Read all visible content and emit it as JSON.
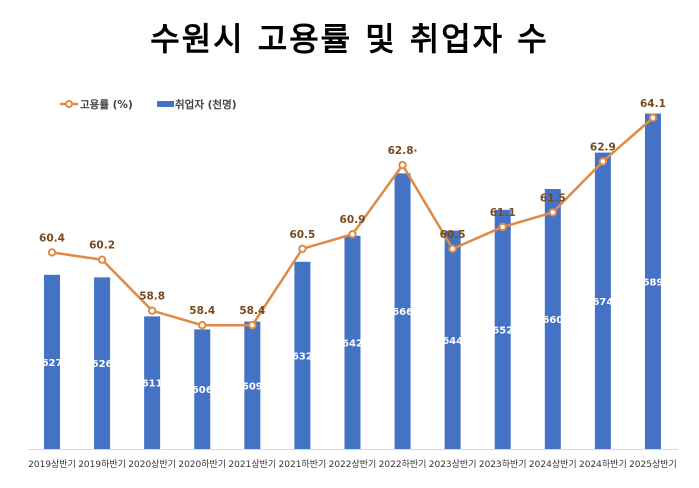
{
  "chart_data": {
    "type": "bar+line",
    "title": "수원시 고용률 및 취업자 수",
    "categories": [
      "2019상반기",
      "2019하반기",
      "2020상반기",
      "2020하반기",
      "2021상반기",
      "2021하반기",
      "2022상반기",
      "2022하반기",
      "2023상반기",
      "2023하반기",
      "2024상반기",
      "2024하반기",
      "2025상반기"
    ],
    "series": [
      {
        "name": "고용률 (%)",
        "type": "line",
        "color": "#E08A45",
        "values": [
          60.4,
          60.2,
          58.8,
          58.4,
          58.4,
          60.5,
          60.9,
          62.8,
          60.5,
          61.1,
          61.5,
          62.9,
          64.1
        ],
        "value_labels": [
          "60.4",
          "60.2",
          "58.8",
          "58.4",
          "58.4",
          "60.5",
          "60.9",
          "62.8·",
          "60.5",
          "61.1",
          "61.5",
          "62.9",
          "64.1"
        ],
        "ylim": [
          55,
          65
        ]
      },
      {
        "name": "취업자 (천명)",
        "type": "bar",
        "color": "#4472C4",
        "values": [
          627,
          626,
          611,
          606,
          609,
          632,
          642,
          666,
          644,
          652,
          660,
          674,
          689
        ],
        "ylim": [
          560,
          700
        ]
      }
    ],
    "legend": "top-left",
    "grid": false
  }
}
